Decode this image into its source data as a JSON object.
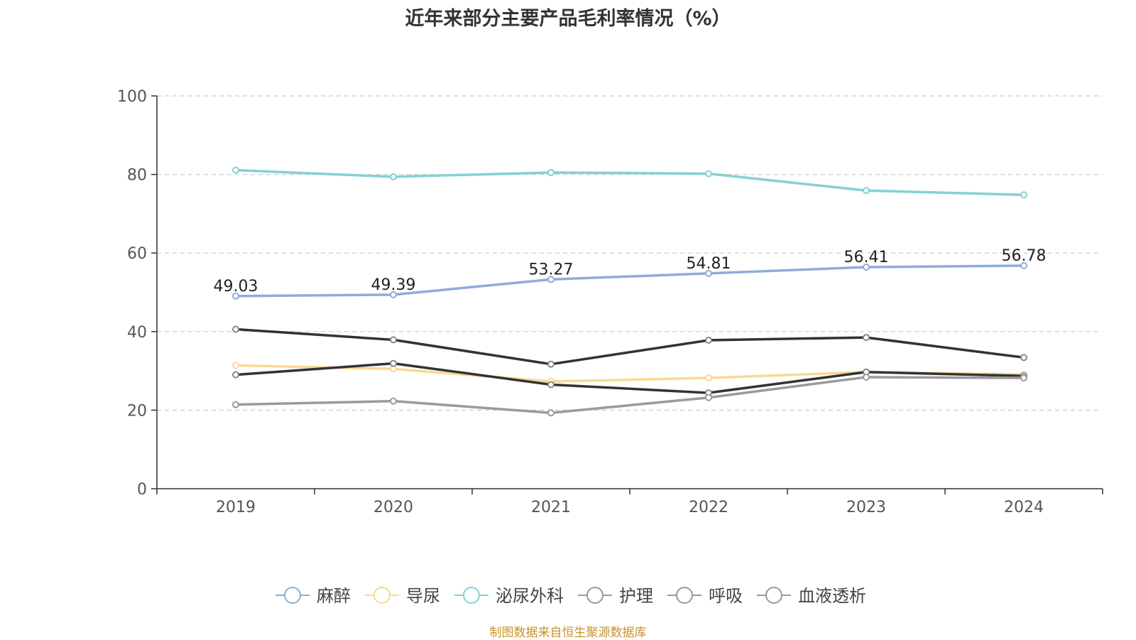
{
  "chart_data": {
    "type": "line",
    "title": "近年来部分主要产品毛利率情况（%）",
    "xlabel": "",
    "ylabel": "",
    "categories": [
      "2019",
      "2020",
      "2021",
      "2022",
      "2023",
      "2024"
    ],
    "ylim": [
      0,
      100
    ],
    "yticks": [
      0,
      20,
      40,
      60,
      80,
      100
    ],
    "grid": true,
    "legend_position": "bottom-center",
    "series": [
      {
        "name": "麻醉",
        "color": "#8fabd9",
        "values": [
          49.03,
          49.39,
          53.27,
          54.81,
          56.41,
          56.78
        ],
        "show_labels": true,
        "labels": [
          "49.03",
          "49.39",
          "53.27",
          "54.81",
          "56.41",
          "56.78"
        ]
      },
      {
        "name": "导尿",
        "color": "#fad891",
        "values": [
          31.4,
          30.5,
          27.3,
          28.2,
          29.7,
          29.1
        ],
        "show_labels": false
      },
      {
        "name": "泌尿外科",
        "color": "#85d1d1",
        "values": [
          81.1,
          79.4,
          80.5,
          80.2,
          75.9,
          74.8
        ],
        "show_labels": false
      },
      {
        "name": "护理",
        "color": "#333333",
        "values": [
          40.6,
          37.9,
          31.7,
          37.8,
          38.5,
          33.4
        ],
        "show_labels": false
      },
      {
        "name": "呼吸",
        "color": "#333333",
        "values": [
          29.0,
          31.9,
          26.5,
          24.4,
          29.7,
          28.7
        ],
        "show_labels": false
      },
      {
        "name": "血液透析",
        "color": "#9a9a9a",
        "values": [
          21.4,
          22.3,
          19.3,
          23.2,
          28.4,
          28.2
        ],
        "show_labels": false
      }
    ],
    "legend_marker_color": "#999999"
  },
  "footer": {
    "source": "制图数据来自恒生聚源数据库"
  }
}
